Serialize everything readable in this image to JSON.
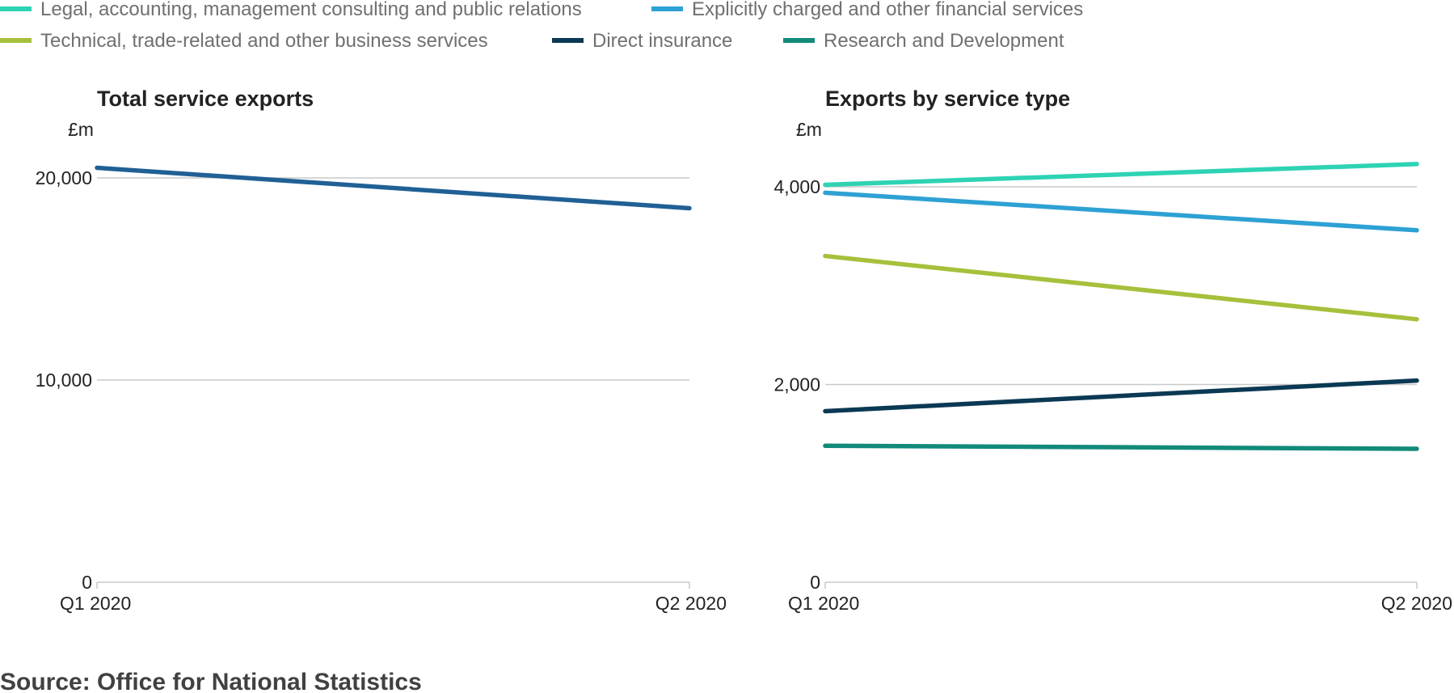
{
  "chart_data": {
    "type": "line",
    "legend": {
      "placement": "top",
      "items": [
        {
          "label": "Legal, accounting, management consulting and public relations",
          "color": "#2ed3b4"
        },
        {
          "label": "Explicitly charged and other financial services",
          "color": "#2ea1d4"
        },
        {
          "label": "Technical, trade-related and other business services",
          "color": "#a6c03c"
        },
        {
          "label": "Direct insurance",
          "color": "#0b3954"
        },
        {
          "label": "Research and Development",
          "color": "#118a7a"
        }
      ]
    },
    "panels": [
      {
        "title": "Total service exports",
        "unit": "£m",
        "categories": [
          "Q1 2020",
          "Q2 2020"
        ],
        "ylim": [
          0,
          20000
        ],
        "yticks": [
          {
            "v": 0,
            "label": "0"
          },
          {
            "v": 10000,
            "label": "10,000"
          },
          {
            "v": 20000,
            "label": "20,000"
          }
        ],
        "grid": true,
        "series": [
          {
            "color": "#206095",
            "values": [
              20500,
              18500
            ]
          }
        ]
      },
      {
        "title": "Exports by service type",
        "unit": "£m",
        "categories": [
          "Q1 2020",
          "Q2 2020"
        ],
        "ylim": [
          0,
          4000
        ],
        "yticks": [
          {
            "v": 0,
            "label": "0"
          },
          {
            "v": 2000,
            "label": "2,000"
          },
          {
            "v": 4000,
            "label": "4,000"
          }
        ],
        "grid": true,
        "series": [
          {
            "name": "Legal, accounting, management consulting and public relations",
            "color": "#2ed3b4",
            "values": [
              4020,
              4230
            ]
          },
          {
            "name": "Explicitly charged and other financial services",
            "color": "#2ea1d4",
            "values": [
              3940,
              3560
            ]
          },
          {
            "name": "Technical, trade-related and other business services",
            "color": "#a6c03c",
            "values": [
              3300,
              2660
            ]
          },
          {
            "name": "Direct insurance",
            "color": "#0b3954",
            "values": [
              1730,
              2040
            ]
          },
          {
            "name": "Research and Development",
            "color": "#118a7a",
            "values": [
              1380,
              1350
            ]
          }
        ]
      }
    ],
    "source": "Source: Office for National Statistics"
  }
}
